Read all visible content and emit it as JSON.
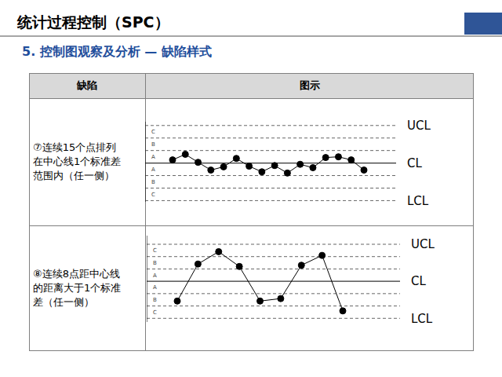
{
  "header": {
    "title": "统计过程控制（SPC）",
    "subtitle": "5. 控制图观察及分析 — 缺陷样式"
  },
  "table": {
    "columns": [
      "缺陷",
      "图示"
    ],
    "rows": [
      {
        "defect": [
          "⑦连续15个点排列",
          "在中心线1个标准差",
          "范围内（任一侧）"
        ]
      },
      {
        "defect": [
          "⑧连续8点距中心线",
          "的距离大于1个标准",
          "差（任一侧）"
        ]
      }
    ]
  },
  "chart_data": [
    {
      "type": "line",
      "categories": [
        null,
        null,
        null,
        null,
        null,
        null,
        null,
        null,
        null,
        null,
        null,
        null,
        null,
        null,
        null,
        null
      ],
      "values": [
        0.25,
        0.7,
        0.06,
        -0.56,
        -0.3,
        0.37,
        -0.25,
        -0.7,
        -0.2,
        -0.8,
        -0.1,
        -0.37,
        0.44,
        0.5,
        0.25,
        -0.56
      ],
      "color": "#000000",
      "marker": "circle",
      "line_style": "solid",
      "ylim": [
        -3.1,
        3.3
      ],
      "yticks": [
        {
          "value": 2.5,
          "label": "C"
        },
        {
          "value": 1.5,
          "label": "B"
        },
        {
          "value": 0.5,
          "label": "A"
        },
        {
          "value": -0.5,
          "label": "A"
        },
        {
          "value": -1.5,
          "label": "B"
        },
        {
          "value": -2.5,
          "label": "C"
        }
      ],
      "tick_labels": "y",
      "control_limits": [
        {
          "value": 3,
          "label": "UCL",
          "line_style": "dashed"
        },
        {
          "value": 0,
          "label": "CL",
          "line_style": "solid"
        },
        {
          "value": -3,
          "label": "LCL",
          "line_style": "dashed"
        }
      ],
      "zone_lines": [
        2,
        1,
        -1,
        -2
      ]
    },
    {
      "type": "line",
      "categories": [
        null,
        null,
        null,
        null,
        null,
        null,
        null,
        null,
        null
      ],
      "values": [
        -1.6,
        1.4,
        2.4,
        1.2,
        -1.6,
        -1.4,
        1.3,
        2.1,
        -2.4
      ],
      "color": "#000000",
      "marker": "circle",
      "line_style": "solid",
      "ylim": [
        -3.3,
        3.7
      ],
      "yticks": [
        {
          "value": 2.5,
          "label": "C"
        },
        {
          "value": 1.5,
          "label": "B"
        },
        {
          "value": 0.5,
          "label": "A"
        },
        {
          "value": -0.5,
          "label": "A"
        },
        {
          "value": -1.5,
          "label": "B"
        },
        {
          "value": -2.5,
          "label": "C"
        }
      ],
      "tick_labels": "y",
      "control_limits": [
        {
          "value": 3,
          "label": "UCL",
          "line_style": "dashed"
        },
        {
          "value": 0,
          "label": "CL",
          "line_style": "solid"
        },
        {
          "value": -3,
          "label": "LCL",
          "line_style": "dashed"
        }
      ],
      "zone_lines": [
        2,
        1,
        -1,
        -2
      ]
    }
  ]
}
